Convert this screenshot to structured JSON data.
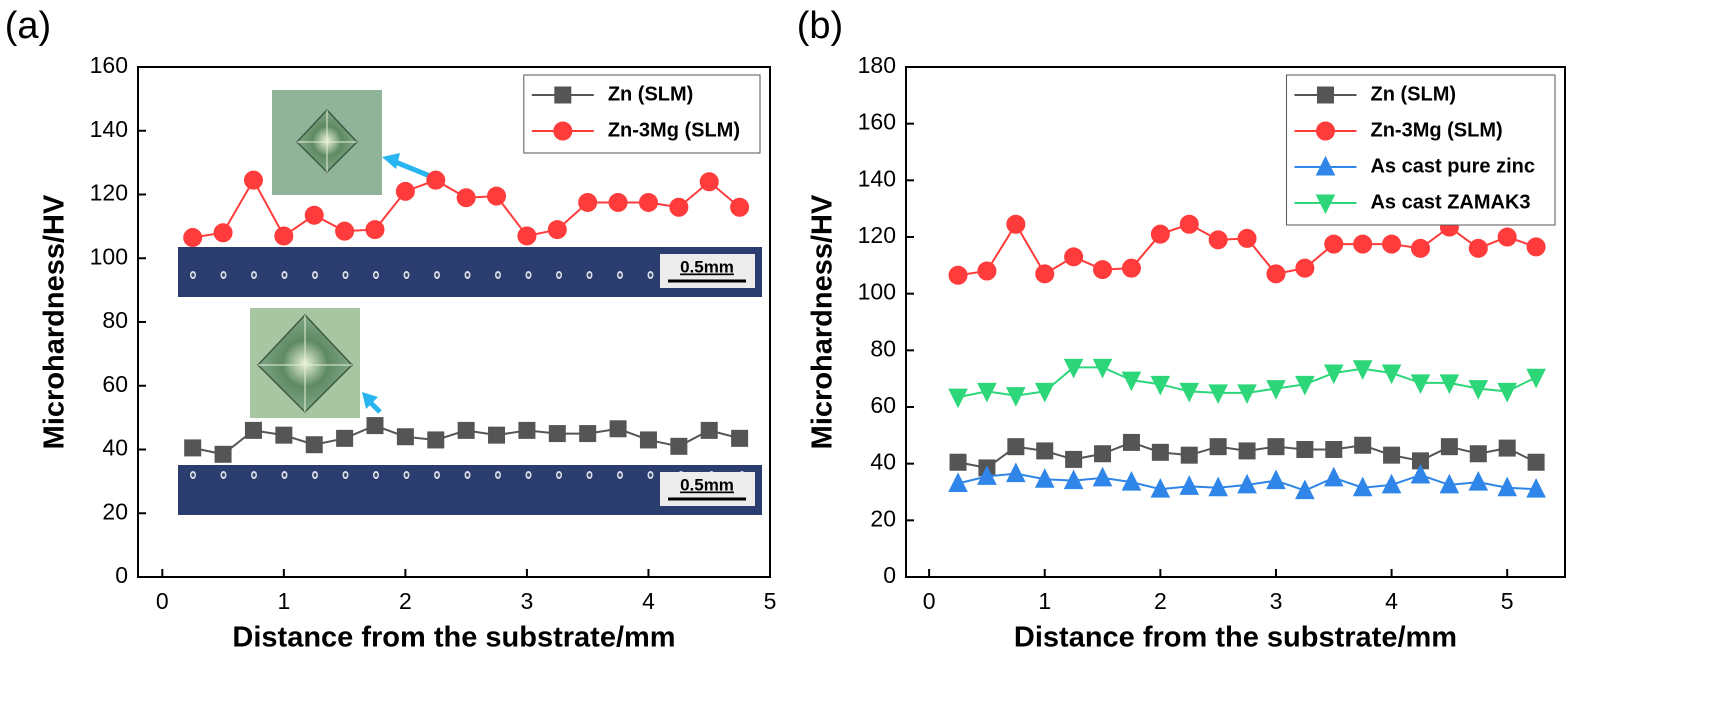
{
  "chart_data": [
    {
      "type": "line",
      "label": "(a)",
      "xlabel": "Distance from the substrate/mm",
      "ylabel": "Microhardness/HV",
      "x": [
        0.25,
        0.5,
        0.75,
        1,
        1.25,
        1.5,
        1.75,
        2,
        2.25,
        2.5,
        2.75,
        3,
        3.25,
        3.5,
        3.75,
        4,
        4.25,
        4.5,
        4.75
      ],
      "series": [
        {
          "name": "Zn (SLM)",
          "color": "#555555",
          "marker": "square",
          "values": [
            40.5,
            38.5,
            46,
            44.5,
            41.5,
            43.5,
            47.5,
            44,
            43,
            46,
            44.5,
            46,
            45,
            45,
            46.5,
            43,
            41,
            46,
            43.5
          ]
        },
        {
          "name": "Zn-3Mg (SLM)",
          "color": "#ff3b3b",
          "marker": "circle",
          "values": [
            106.5,
            108,
            124.5,
            107,
            113.5,
            108.5,
            109,
            121,
            124.5,
            119,
            119.5,
            107,
            109,
            117.5,
            117.5,
            117.5,
            116,
            124,
            116
          ]
        }
      ],
      "xlim": [
        -0.2,
        5
      ],
      "ylim": [
        0,
        160
      ],
      "xticks": [
        0,
        1,
        2,
        3,
        4,
        5
      ],
      "yticks": [
        0,
        20,
        40,
        60,
        80,
        100,
        120,
        140,
        160
      ],
      "legend": "upper right",
      "annotations": [
        "0.5mm",
        "0.5mm"
      ]
    },
    {
      "type": "line",
      "label": "(b)",
      "xlabel": "Distance from the substrate/mm",
      "ylabel": "Microhardness/HV",
      "x": [
        0.25,
        0.5,
        0.75,
        1,
        1.25,
        1.5,
        1.75,
        2,
        2.25,
        2.5,
        2.75,
        3,
        3.25,
        3.5,
        3.75,
        4,
        4.25,
        4.5,
        4.75,
        5,
        5.25
      ],
      "series": [
        {
          "name": "Zn  (SLM)",
          "color": "#555555",
          "marker": "square",
          "values": [
            40.5,
            38.5,
            46,
            44.5,
            41.5,
            43.5,
            47.5,
            44,
            43,
            46,
            44.5,
            46,
            45,
            45,
            46.5,
            43,
            41,
            46,
            43.5,
            45.5,
            40.5
          ]
        },
        {
          "name": "Zn-3Mg (SLM)",
          "color": "#ff3b3b",
          "marker": "circle",
          "values": [
            106.5,
            108,
            124.5,
            107,
            113,
            108.5,
            109,
            121,
            124.5,
            119,
            119.5,
            107,
            109,
            117.5,
            117.5,
            117.5,
            116,
            123.5,
            116,
            120,
            116.5
          ]
        },
        {
          "name": "As cast pure zinc",
          "color": "#2f86e8",
          "marker": "triangle-up",
          "values": [
            33,
            35.5,
            36.5,
            34.5,
            34,
            35,
            33.5,
            31,
            32,
            31.5,
            32.5,
            34,
            30.5,
            35,
            31.5,
            32.5,
            36,
            32.5,
            33.5,
            31.5,
            31
          ]
        },
        {
          "name": "As cast ZAMAK3",
          "color": "#2ed67a",
          "marker": "triangle-down",
          "values": [
            63.5,
            65.5,
            64,
            65.5,
            74,
            74,
            69.5,
            68,
            65.5,
            65,
            65,
            66.5,
            68,
            72,
            73.5,
            72,
            68.5,
            68.5,
            66.5,
            65.5,
            70.5
          ]
        }
      ],
      "xlim": [
        -0.2,
        5.5
      ],
      "ylim": [
        0,
        180
      ],
      "xticks": [
        0,
        1,
        2,
        3,
        4,
        5
      ],
      "yticks": [
        0,
        20,
        40,
        60,
        80,
        100,
        120,
        140,
        160,
        180
      ],
      "legend": "upper right"
    }
  ]
}
